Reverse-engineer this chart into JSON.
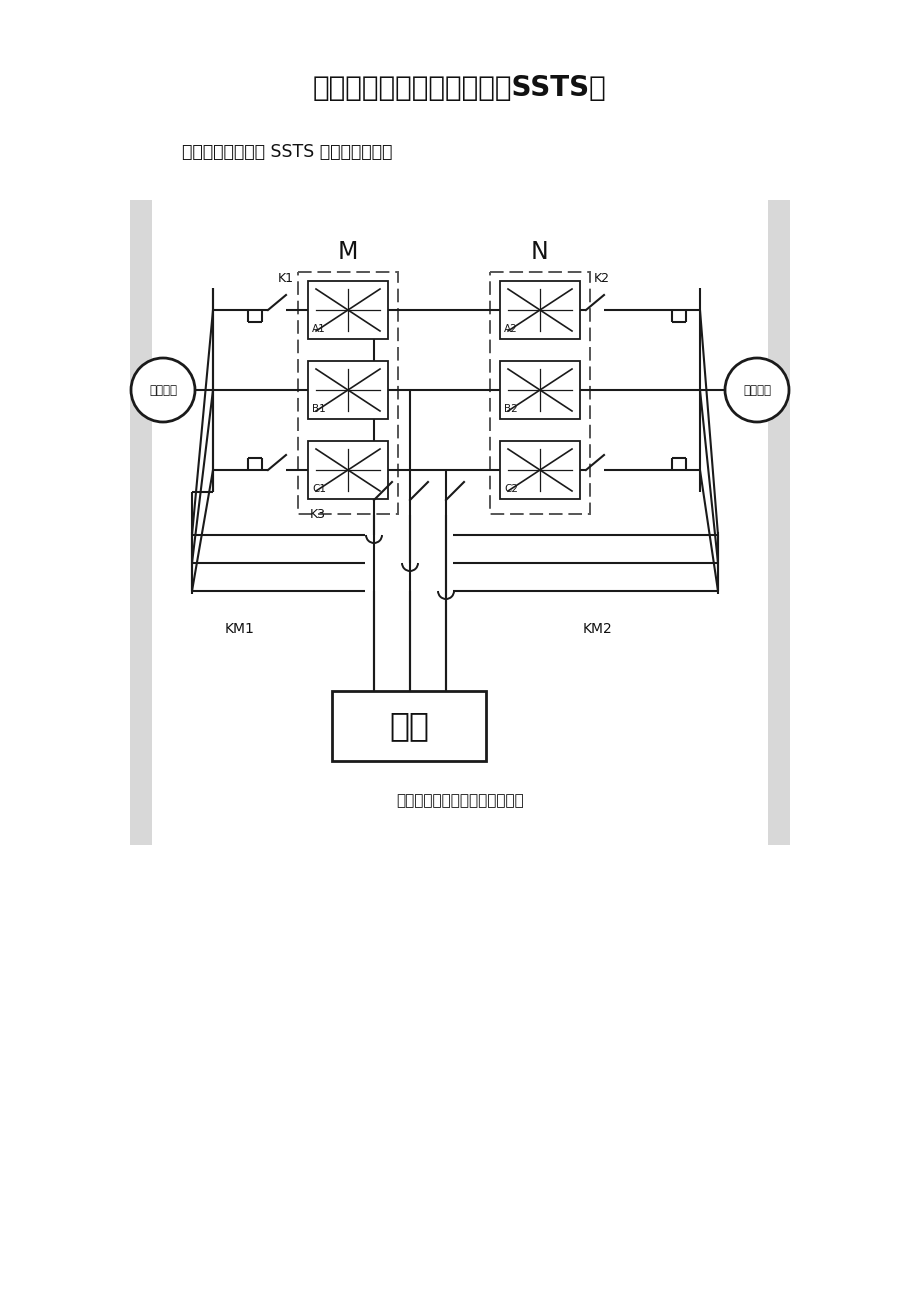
{
  "title": "双电源固体静态切换开关（SSTS）",
  "subtitle": "一、三相双路供电 SSTS 的电路拓扑结构",
  "caption": "图一：双电源开关电路拓扑结构",
  "label_M": "M",
  "label_N": "N",
  "label_K1": "K1",
  "label_K2": "K2",
  "label_K3": "K3",
  "label_KM1": "KM1",
  "label_KM2": "KM2",
  "label_A1": "A1",
  "label_B1": "B1",
  "label_C1": "C1",
  "label_A2": "A2",
  "label_B2": "B2",
  "label_C2": "C2",
  "label_source1": "常用电源",
  "label_source2": "备用电源",
  "label_load": "负载",
  "bg_color": "#ffffff",
  "line_color": "#1a1a1a",
  "panel_color": "#d8d8d8"
}
